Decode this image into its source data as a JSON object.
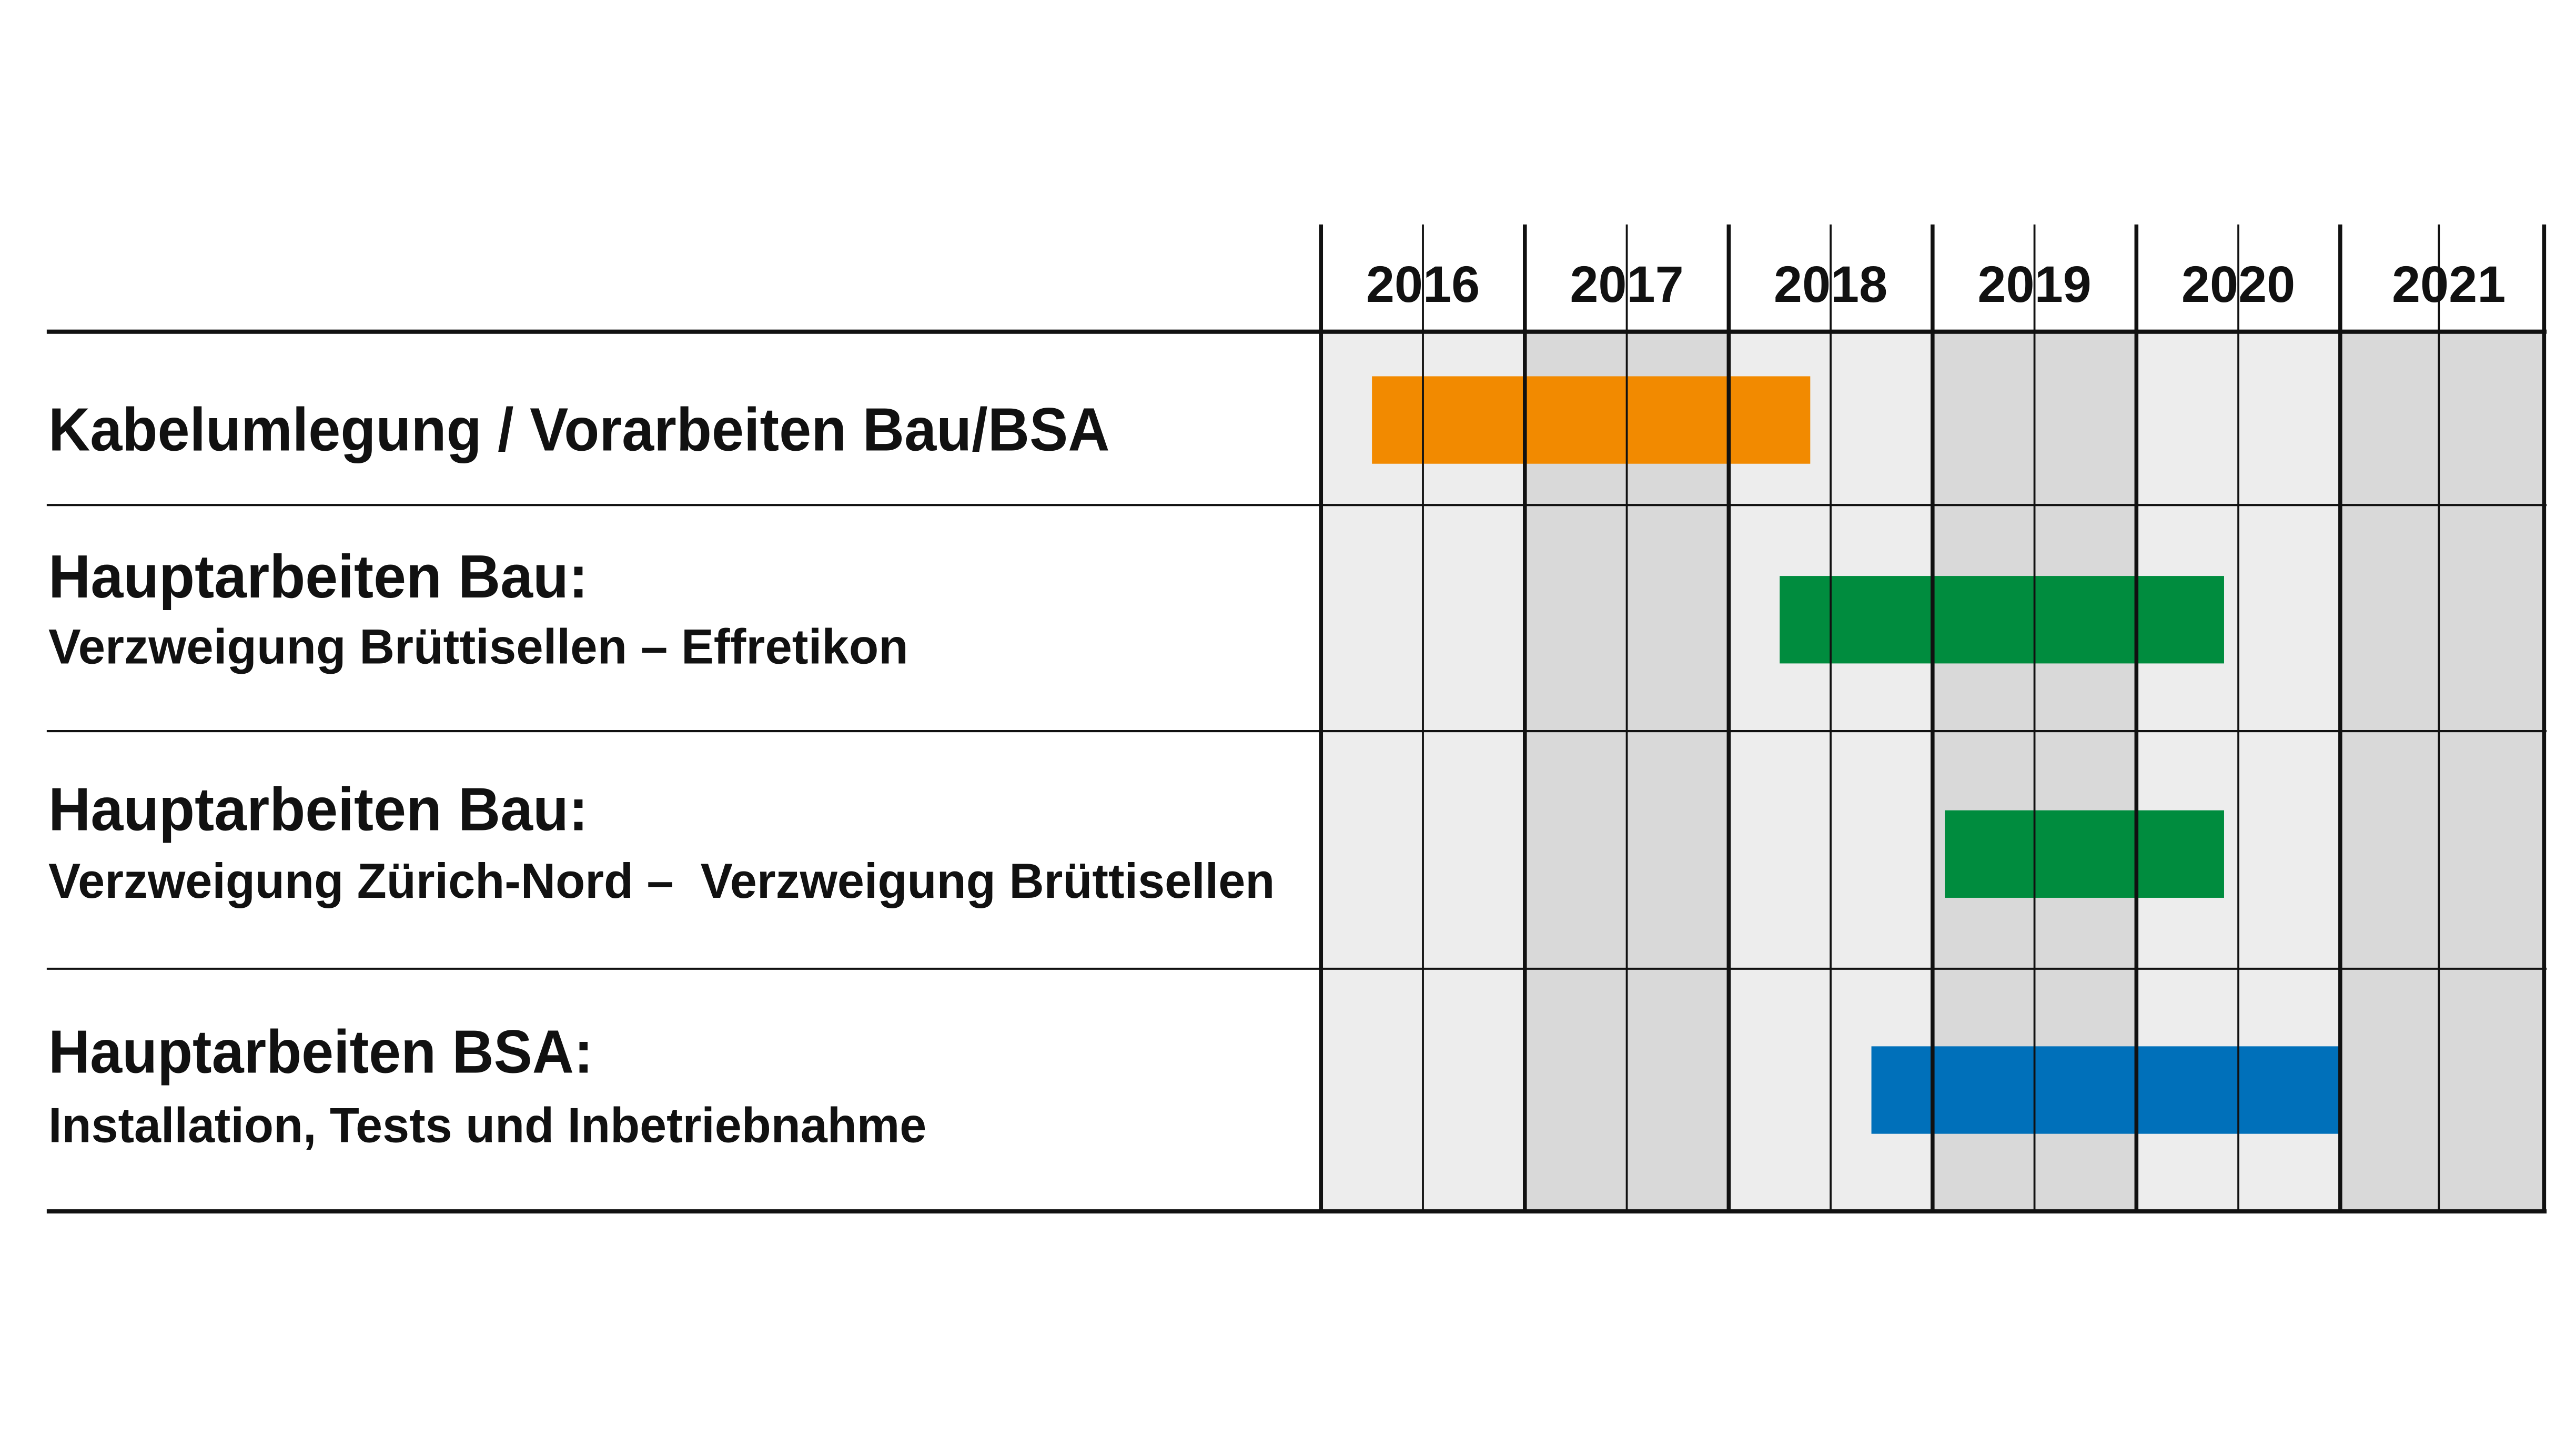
{
  "chart_data": {
    "type": "gantt",
    "title": "",
    "xlabel": "",
    "ylabel": "",
    "xlim": [
      2016,
      2022
    ],
    "years": [
      "2016",
      "2017",
      "2018",
      "2019",
      "2020",
      "2021"
    ],
    "tasks": [
      {
        "title": "Kabelumlegung / Vorarbeiten Bau/BSA",
        "subtitle": "",
        "start": 2016.25,
        "end": 2018.4,
        "color": "#F28A00"
      },
      {
        "title": "Hauptarbeiten Bau:",
        "subtitle": "Verzweigung Brüttisellen – Effretikon",
        "start": 2018.25,
        "end": 2020.43,
        "color": "#008C3E"
      },
      {
        "title": "Hauptarbeiten Bau:",
        "subtitle": "Verzweigung Zürich-Nord –  Verzweigung Brüttisellen",
        "start": 2019.06,
        "end": 2020.43,
        "color": "#008C3E"
      },
      {
        "title": "Hauptarbeiten BSA:",
        "subtitle": "Installation, Tests und Inbetriebnahme",
        "start": 2018.7,
        "end": 2021.0,
        "color": "#0070BA"
      }
    ],
    "colors": {
      "band_light": "#EDEDED",
      "band_dark": "#D9D9D9",
      "grid": "#111111"
    }
  }
}
